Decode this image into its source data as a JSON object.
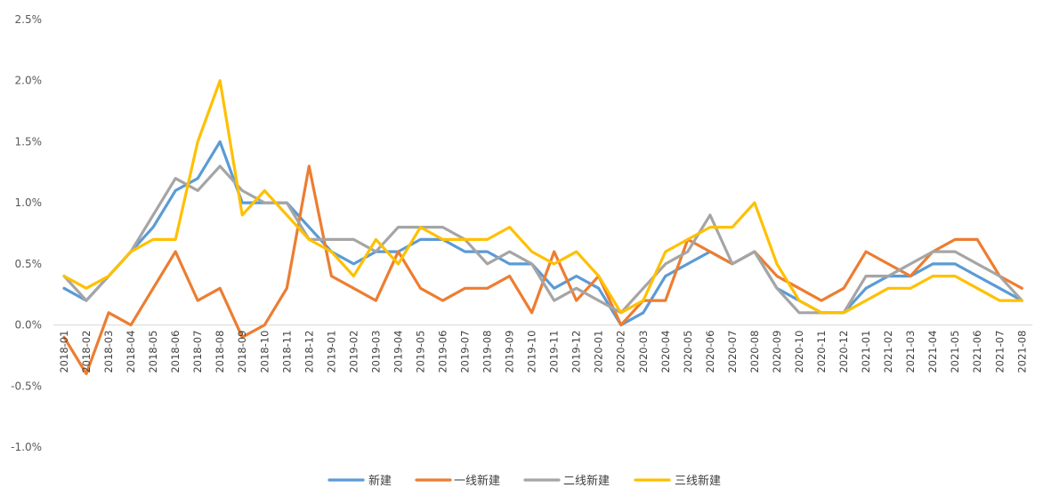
{
  "chart_data": {
    "type": "line",
    "title": "",
    "xlabel": "",
    "ylabel": "",
    "ylim": [
      -1.0,
      2.5
    ],
    "y_ticks": [
      "2.5%",
      "2.0%",
      "1.5%",
      "1.0%",
      "0.5%",
      "0.0%",
      "-0.5%",
      "-1.0%"
    ],
    "y_tick_values": [
      2.5,
      2.0,
      1.5,
      1.0,
      0.5,
      0.0,
      -0.5,
      -1.0
    ],
    "grid": false,
    "legend_position": "bottom",
    "categories": [
      "2018-01",
      "2018-02",
      "2018-03",
      "2018-04",
      "2018-05",
      "2018-06",
      "2018-07",
      "2018-08",
      "2018-09",
      "2018-10",
      "2018-11",
      "2018-12",
      "2019-01",
      "2019-02",
      "2019-03",
      "2019-04",
      "2019-05",
      "2019-06",
      "2019-07",
      "2019-08",
      "2019-09",
      "2019-10",
      "2019-11",
      "2019-12",
      "2020-01",
      "2020-02",
      "2020-03",
      "2020-04",
      "2020-05",
      "2020-06",
      "2020-07",
      "2020-08",
      "2020-09",
      "2020-10",
      "2020-11",
      "2020-12",
      "2021-01",
      "2021-02",
      "2021-03",
      "2021-04",
      "2021-05",
      "2021-06",
      "2021-07",
      "2021-08"
    ],
    "series": [
      {
        "name": "新建",
        "color": "#5B9BD5",
        "values": [
          0.3,
          0.2,
          0.4,
          0.6,
          0.8,
          1.1,
          1.2,
          1.5,
          1.0,
          1.0,
          1.0,
          0.8,
          0.6,
          0.5,
          0.6,
          0.6,
          0.7,
          0.7,
          0.6,
          0.6,
          0.5,
          0.5,
          0.3,
          0.4,
          0.3,
          0.0,
          0.1,
          0.4,
          0.5,
          0.6,
          0.5,
          0.6,
          0.3,
          0.2,
          0.1,
          0.1,
          0.3,
          0.4,
          0.4,
          0.5,
          0.5,
          0.4,
          0.3,
          0.2
        ]
      },
      {
        "name": "一线新建",
        "color": "#ED7D31",
        "values": [
          -0.1,
          -0.4,
          0.1,
          0.0,
          0.3,
          0.6,
          0.2,
          0.3,
          -0.1,
          0.0,
          0.3,
          1.3,
          0.4,
          0.3,
          0.2,
          0.6,
          0.3,
          0.2,
          0.3,
          0.3,
          0.4,
          0.1,
          0.6,
          0.2,
          0.4,
          0.0,
          0.2,
          0.2,
          0.7,
          0.6,
          0.5,
          0.6,
          0.4,
          0.3,
          0.2,
          0.3,
          0.6,
          0.5,
          0.4,
          0.6,
          0.7,
          0.7,
          0.4,
          0.3
        ]
      },
      {
        "name": "二线新建",
        "color": "#A5A5A5",
        "values": [
          0.4,
          0.2,
          0.4,
          0.6,
          0.9,
          1.2,
          1.1,
          1.3,
          1.1,
          1.0,
          1.0,
          0.7,
          0.7,
          0.7,
          0.6,
          0.8,
          0.8,
          0.8,
          0.7,
          0.5,
          0.6,
          0.5,
          0.2,
          0.3,
          0.2,
          0.1,
          0.3,
          0.5,
          0.6,
          0.9,
          0.5,
          0.6,
          0.3,
          0.1,
          0.1,
          0.1,
          0.4,
          0.4,
          0.5,
          0.6,
          0.6,
          0.5,
          0.4,
          0.2
        ]
      },
      {
        "name": "三线新建",
        "color": "#FFC000",
        "values": [
          0.4,
          0.3,
          0.4,
          0.6,
          0.7,
          0.7,
          1.5,
          2.0,
          0.9,
          1.1,
          0.9,
          0.7,
          0.6,
          0.4,
          0.7,
          0.5,
          0.8,
          0.7,
          0.7,
          0.7,
          0.8,
          0.6,
          0.5,
          0.6,
          0.4,
          0.1,
          0.2,
          0.6,
          0.7,
          0.8,
          0.8,
          1.0,
          0.5,
          0.2,
          0.1,
          0.1,
          0.2,
          0.3,
          0.3,
          0.4,
          0.4,
          0.3,
          0.2,
          0.2
        ]
      }
    ]
  }
}
